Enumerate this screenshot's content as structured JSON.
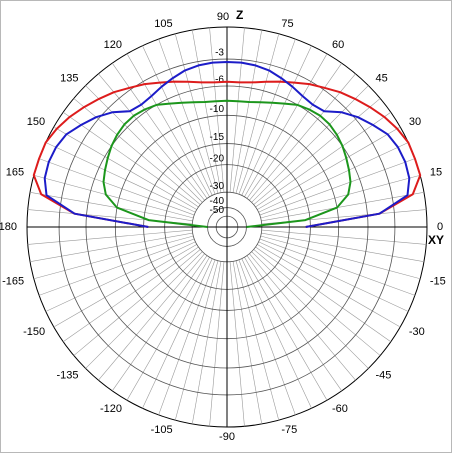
{
  "chart_data": {
    "type": "polar",
    "radial_scale": "arrl-log",
    "x_label": "XY",
    "y_label": "Z",
    "x": [
      0,
      5,
      10,
      15,
      20,
      25,
      30,
      35,
      40,
      45,
      50,
      55,
      60,
      65,
      70,
      75,
      80,
      85,
      90,
      95,
      100,
      105,
      110,
      115,
      120,
      125,
      130,
      135,
      140,
      145,
      150,
      155,
      160,
      165,
      170,
      175,
      180
    ],
    "series": [
      {
        "color": "#dd1c1c",
        "values": [
          -16,
          -4.6,
          -1.0,
          0,
          0,
          0,
          -0.3,
          -0.7,
          -1.2,
          -1.7,
          -2.2,
          -2.8,
          -3.3,
          -3.9,
          -4.4,
          -4.9,
          -5.3,
          -5.5,
          -5.5,
          -5.5,
          -5.3,
          -4.9,
          -4.4,
          -3.9,
          -3.3,
          -2.8,
          -2.2,
          -1.7,
          -1.2,
          -0.7,
          -0.3,
          0,
          0,
          0,
          -1.0,
          -4.6,
          -16
        ]
      },
      {
        "color": "#1c1cc8",
        "values": [
          -16,
          -4.6,
          -1.5,
          -1.0,
          -0.9,
          -1.0,
          -1.3,
          -2.0,
          -2.7,
          -3.6,
          -4.8,
          -5.0,
          -4.8,
          -4.4,
          -4.0,
          -3.6,
          -3.4,
          -3.3,
          -3.3,
          -3.3,
          -3.4,
          -3.6,
          -4.0,
          -4.4,
          -4.8,
          -5.0,
          -4.8,
          -3.6,
          -2.7,
          -2.0,
          -1.3,
          -1.0,
          -0.9,
          -1.0,
          -1.5,
          -4.6,
          -16
        ]
      },
      {
        "color": "#1c961c",
        "values": [
          -40,
          -16,
          -10,
          -8,
          -7.2,
          -6.8,
          -6.4,
          -6,
          -5.7,
          -5.5,
          -5.5,
          -5.7,
          -6,
          -6.6,
          -7.1,
          -7.5,
          -7.8,
          -7.9,
          -7.9,
          -7.9,
          -7.8,
          -7.5,
          -7.1,
          -6.6,
          -6,
          -5.7,
          -5.5,
          -5.5,
          -5.7,
          -6,
          -6.4,
          -6.8,
          -7.2,
          -8,
          -10,
          -16,
          -40
        ]
      }
    ],
    "rlim": [
      -50,
      0
    ],
    "rticks": [
      -3,
      -6,
      -10,
      -15,
      -20,
      -30,
      -40,
      -50
    ],
    "angle_ticks": [
      0,
      15,
      30,
      45,
      60,
      75,
      90,
      105,
      120,
      135,
      150,
      165,
      180,
      -165,
      -150,
      -135,
      -120,
      -105,
      -90,
      -75,
      -60,
      -45,
      -30,
      -15
    ],
    "grid": true
  }
}
